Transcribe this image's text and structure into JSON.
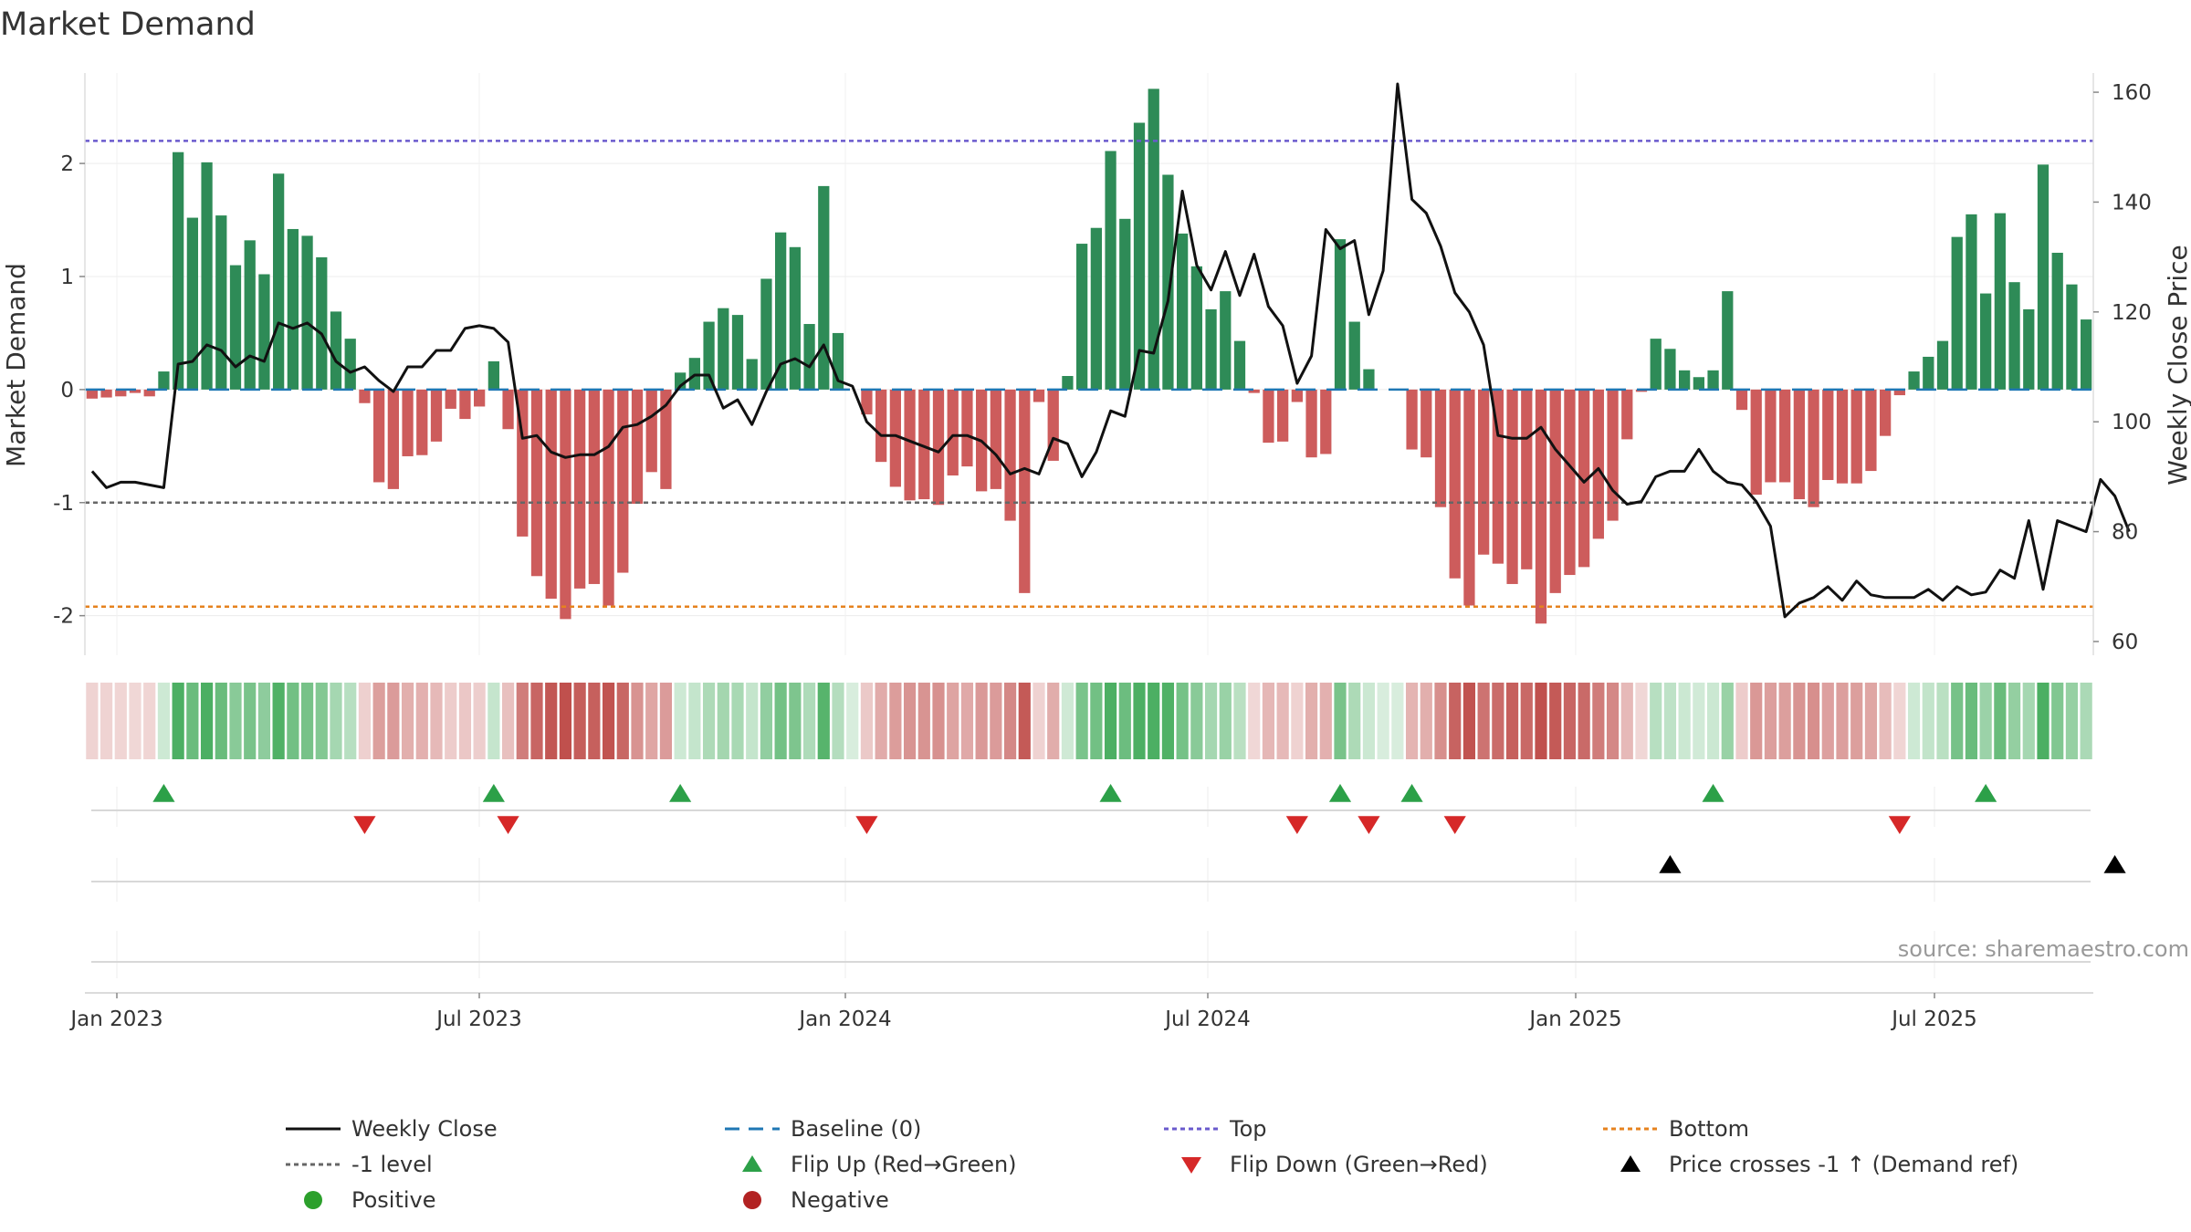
{
  "title": "Market Demand",
  "source": "source: sharemaestro.com",
  "colors": {
    "positive": "#2e8b57",
    "negative": "#cd5c5c",
    "close": "#111111",
    "top": "#6a5acd",
    "bottom": "#e6821e",
    "minus1": "#666666",
    "baseline": "#1f77b4",
    "flip_up": "#2ca048",
    "flip_down": "#d62828",
    "cross": "#000000",
    "pos_dot": "#2ca02c",
    "neg_dot": "#b22222"
  },
  "chart_data": {
    "type": "bar+line",
    "title": "Market Demand",
    "ylabel_left": "Market Demand",
    "ylabel_right": "Weekly Close Price",
    "y_left_range": [
      -2.35,
      2.8
    ],
    "y_left_ticks": [
      "-2",
      "-1",
      "0",
      "1",
      "2"
    ],
    "y_right_range": [
      57.5,
      163.5
    ],
    "y_right_ticks": [
      "60",
      "80",
      "100",
      "120",
      "140",
      "160"
    ],
    "x_ticks": [
      "Jan 2023",
      "Jul 2023",
      "Jan 2024",
      "Jul 2024",
      "Jan 2025",
      "Jul 2025"
    ],
    "top_level": 2.2,
    "bottom_level": -1.92,
    "minus1_level": -1.0,
    "series_names": {
      "close": "Weekly Close",
      "baseline": "Baseline (0)",
      "top": "Top",
      "bottom": "Bottom",
      "minus1": "-1 level",
      "flip_up": "Flip Up (Red→Green)",
      "flip_down": "Flip Down (Green→Red)",
      "cross": "Price crosses -1 ↑ (Demand ref)",
      "positive": "Positive",
      "negative": "Negative"
    },
    "demand": [
      -0.08,
      -0.07,
      -0.06,
      -0.03,
      -0.06,
      0.16,
      2.1,
      1.52,
      2.01,
      1.54,
      1.1,
      1.32,
      1.02,
      1.91,
      1.42,
      1.36,
      1.17,
      0.69,
      0.45,
      -0.12,
      -0.82,
      -0.88,
      -0.59,
      -0.58,
      -0.46,
      -0.17,
      -0.26,
      -0.15,
      0.25,
      -0.35,
      -1.3,
      -1.65,
      -1.85,
      -2.03,
      -1.76,
      -1.72,
      -1.91,
      -1.62,
      -1.01,
      -0.73,
      -0.88,
      0.15,
      0.28,
      0.6,
      0.72,
      0.66,
      0.27,
      0.98,
      1.39,
      1.26,
      0.58,
      1.8,
      0.5,
      0.0,
      -0.22,
      -0.64,
      -0.86,
      -0.98,
      -0.97,
      -1.02,
      -0.76,
      -0.68,
      -0.9,
      -0.88,
      -1.16,
      -1.8,
      -0.11,
      -0.63,
      0.12,
      1.29,
      1.43,
      2.11,
      1.51,
      2.36,
      2.66,
      1.9,
      1.38,
      1.09,
      0.71,
      0.87,
      0.43,
      -0.03,
      -0.47,
      -0.46,
      -0.11,
      -0.6,
      -0.57,
      1.33,
      0.6,
      0.18,
      0.0,
      0.0,
      -0.53,
      -0.6,
      -1.04,
      -1.67,
      -1.91,
      -1.46,
      -1.54,
      -1.72,
      -1.59,
      -2.07,
      -1.8,
      -1.64,
      -1.57,
      -1.32,
      -1.16,
      -0.44,
      -0.02,
      0.45,
      0.36,
      0.17,
      0.11,
      0.17,
      0.87,
      -0.18,
      -0.93,
      -0.82,
      -0.82,
      -0.97,
      -1.04,
      -0.8,
      -0.83,
      -0.83,
      -0.72,
      -0.41,
      -0.05,
      0.16,
      0.29,
      0.43,
      1.35,
      1.55,
      0.85,
      1.56,
      0.95,
      0.71,
      1.99,
      1.21,
      0.93,
      0.62
    ],
    "close": [
      91,
      88,
      89,
      89,
      88.5,
      88,
      110.5,
      111,
      114,
      113,
      110,
      112,
      111,
      118,
      117,
      118,
      116,
      111,
      109,
      110,
      107.5,
      105.5,
      110,
      110,
      113,
      113,
      117,
      117.5,
      117,
      114.5,
      97,
      97.5,
      94.5,
      93.5,
      94,
      94,
      95.5,
      99,
      99.5,
      101,
      103,
      106.5,
      108.5,
      108.5,
      102.5,
      104,
      99.5,
      105.5,
      110.5,
      111.5,
      110,
      114,
      107.5,
      106.5,
      100,
      97.5,
      97.5,
      96.5,
      95.5,
      94.5,
      97.5,
      97.5,
      96.5,
      94,
      90.5,
      91.5,
      90.5,
      97,
      96,
      90,
      94.5,
      102,
      101,
      113,
      112.5,
      122,
      142,
      128.5,
      124,
      131,
      123,
      130.5,
      121,
      117.5,
      107,
      112,
      135,
      131.5,
      133,
      119.5,
      127.5,
      161.5,
      140.5,
      138,
      132,
      123.5,
      120,
      114,
      97.5,
      97,
      97,
      99,
      95,
      92,
      89,
      91.5,
      87.5,
      85,
      85.5,
      90,
      91,
      91,
      95,
      91,
      89,
      88.5,
      85.5,
      81,
      64.5,
      67,
      68,
      70,
      67.5,
      71,
      68.5,
      68,
      68,
      68,
      69.5,
      67.5,
      70,
      68.5,
      69,
      73,
      71.5,
      82,
      69.5,
      82,
      81,
      80,
      89.5,
      86.5,
      80
    ],
    "flip_up_idx": [
      5,
      28,
      41,
      71,
      87,
      92,
      113,
      132
    ],
    "flip_down_idx": [
      19,
      29,
      54,
      84,
      89,
      95,
      126
    ],
    "price_cross_idx": [
      110,
      141
    ]
  }
}
